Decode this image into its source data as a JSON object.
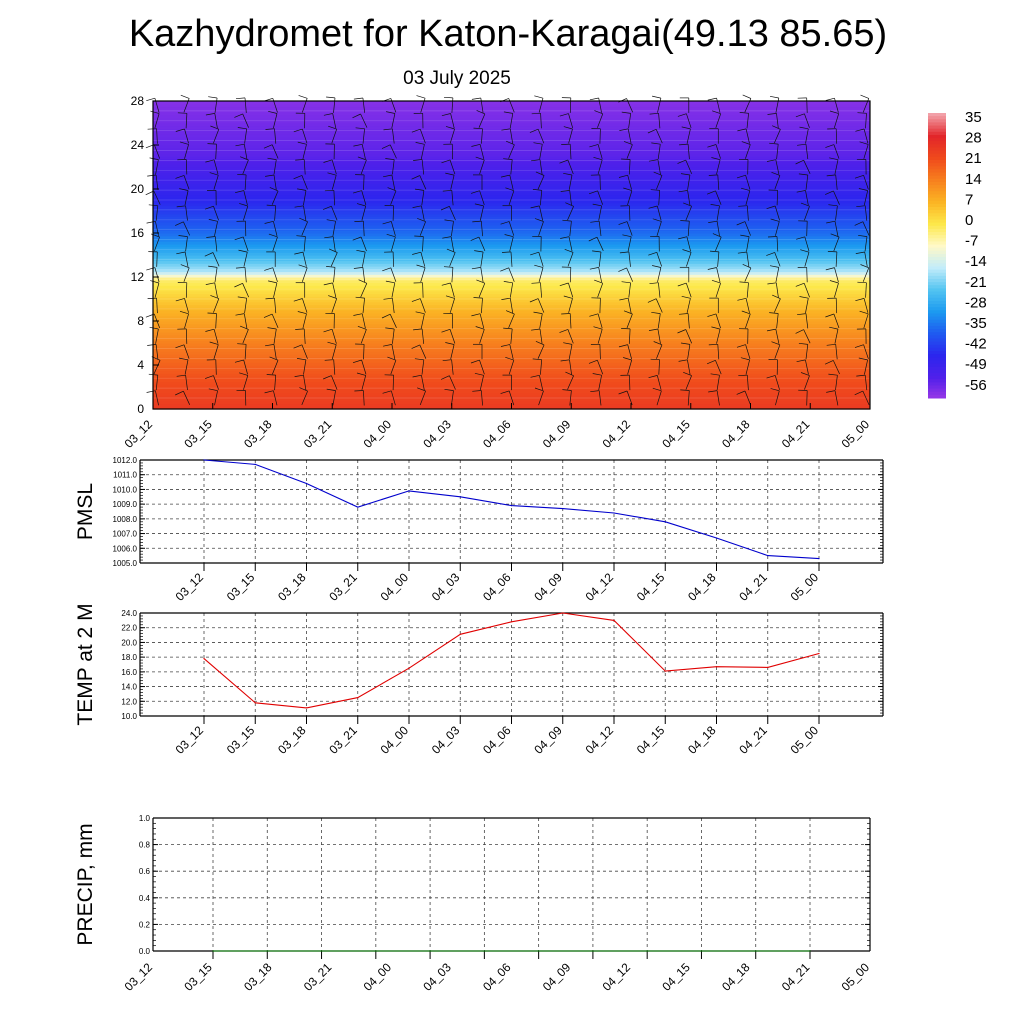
{
  "title": "Kazhydromet for Katon-Karagai(49.13 85.65)",
  "date": "03 July 2025",
  "time_labels": [
    "03_12",
    "03_15",
    "03_18",
    "03_21",
    "04_00",
    "04_03",
    "04_06",
    "04_09",
    "04_12",
    "04_15",
    "04_18",
    "04_21",
    "05_00"
  ],
  "colorbar": {
    "labels": [
      "35",
      "28",
      "21",
      "14",
      "7",
      "0",
      "-7",
      "-14",
      "-21",
      "-28",
      "-35",
      "-42",
      "-49",
      "-56"
    ],
    "stops": [
      "#f2a0a8",
      "#e2262a",
      "#f04a1c",
      "#f7801e",
      "#fbb424",
      "#fde84a",
      "#fff9c8",
      "#c2ecfa",
      "#53c4f1",
      "#1c9af0",
      "#1f5af0",
      "#2c26ee",
      "#5020ea",
      "#9b38e6"
    ]
  },
  "chart_data": [
    {
      "type": "heatmap",
      "name": "vertical-profile",
      "y_ticks": [
        0,
        4,
        8,
        12,
        16,
        20,
        24,
        28
      ],
      "ylim": [
        0,
        28
      ],
      "value_range": [
        -56,
        35
      ],
      "description_layers": "temperature-like shading with wind barbs",
      "profile": [
        {
          "level": 0,
          "value": 24
        },
        {
          "level": 3,
          "value": 20
        },
        {
          "level": 6,
          "value": 14
        },
        {
          "level": 9,
          "value": 7
        },
        {
          "level": 11.8,
          "value": -2
        },
        {
          "level": 12.5,
          "value": -15
        },
        {
          "level": 14,
          "value": -24
        },
        {
          "level": 16,
          "value": -33
        },
        {
          "level": 19,
          "value": -42
        },
        {
          "level": 23,
          "value": -50
        },
        {
          "level": 28,
          "value": -54
        }
      ]
    },
    {
      "type": "line",
      "name": "pmsl",
      "ylabel": "PMSL",
      "ylim": [
        1005.0,
        1012.0
      ],
      "y_ticks": [
        "1005.0",
        "1006.0",
        "1007.0",
        "1008.0",
        "1009.0",
        "1010.0",
        "1011.0",
        "1012.0"
      ],
      "color": "#0000cc",
      "values": [
        1012.0,
        1011.7,
        1010.4,
        1008.8,
        1009.9,
        1009.5,
        1008.9,
        1008.7,
        1008.4,
        1007.8,
        1006.7,
        1005.5,
        1005.3
      ]
    },
    {
      "type": "line",
      "name": "temp2m",
      "ylabel": "TEMP at 2 M",
      "ylim": [
        10.0,
        24.0
      ],
      "y_ticks": [
        "10.0",
        "12.0",
        "14.0",
        "16.0",
        "18.0",
        "20.0",
        "22.0",
        "24.0"
      ],
      "color": "#e00000",
      "values": [
        17.8,
        11.8,
        11.1,
        12.5,
        16.5,
        21.1,
        22.8,
        24.0,
        23.0,
        16.1,
        16.7,
        16.6,
        18.5
      ]
    },
    {
      "type": "line",
      "name": "precip",
      "ylabel": "PRECIP, mm",
      "ylim": [
        0.0,
        1.0
      ],
      "y_ticks": [
        "0.0",
        "0.2",
        "0.4",
        "0.6",
        "0.8",
        "1.0"
      ],
      "color": "#008000",
      "values": [
        0,
        0,
        0,
        0,
        0,
        0,
        0,
        0,
        0,
        0,
        0,
        0
      ]
    }
  ]
}
